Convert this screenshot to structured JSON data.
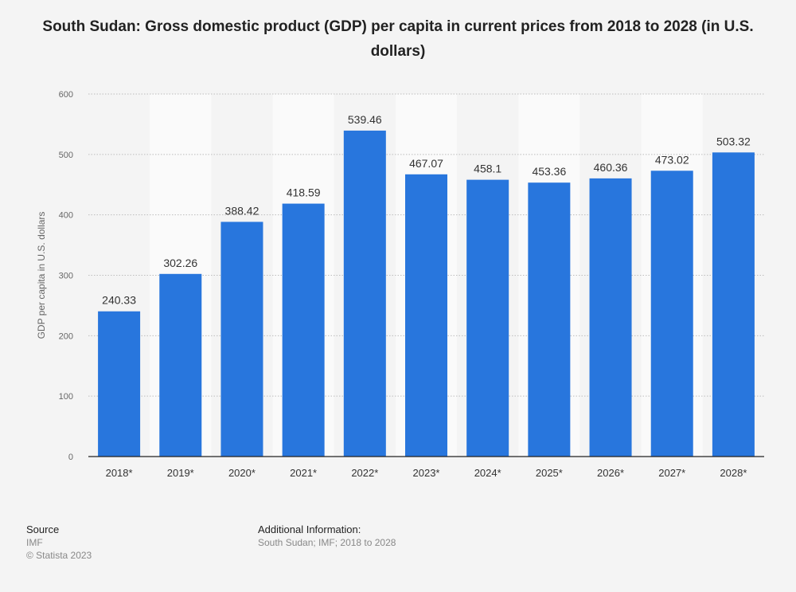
{
  "chart_data": {
    "type": "bar",
    "title": "South Sudan: Gross domestic product (GDP) per capita in current prices from 2018 to 2028 (in U.S. dollars)",
    "xlabel": "",
    "ylabel": "GDP per capita in U.S. dollars",
    "categories": [
      "2018*",
      "2019*",
      "2020*",
      "2021*",
      "2022*",
      "2023*",
      "2024*",
      "2025*",
      "2026*",
      "2027*",
      "2028*"
    ],
    "values": [
      240.33,
      302.26,
      388.42,
      418.59,
      539.46,
      467.07,
      458.1,
      453.36,
      460.36,
      473.02,
      503.32
    ],
    "value_labels": [
      "240.33",
      "302.26",
      "388.42",
      "418.59",
      "539.46",
      "467.07",
      "458.1",
      "453.36",
      "460.36",
      "473.02",
      "503.32"
    ],
    "ylim": [
      0,
      600
    ],
    "yticks": [
      0,
      100,
      200,
      300,
      400,
      500,
      600
    ],
    "grid": true,
    "colors": {
      "bar": "#2876dd",
      "band": "#fafafa"
    }
  },
  "footer": {
    "source_heading": "Source",
    "source_lines": [
      "IMF",
      "© Statista 2023"
    ],
    "info_heading": "Additional Information:",
    "info_text": "South Sudan; IMF; 2018 to 2028"
  }
}
